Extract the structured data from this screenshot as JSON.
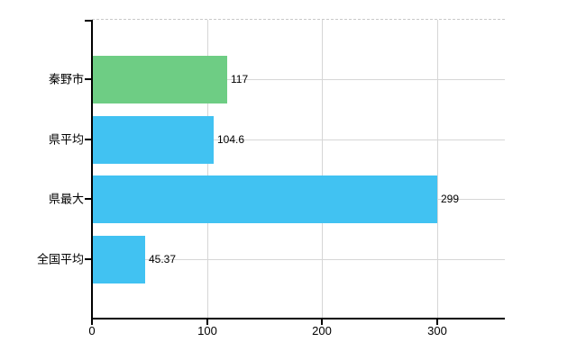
{
  "chart_data": {
    "type": "bar",
    "orientation": "horizontal",
    "title": "",
    "categories": [
      "秦野市",
      "県平均",
      "県最大",
      "全国平均"
    ],
    "values": [
      117,
      104.6,
      299,
      45.37
    ],
    "value_labels": [
      "117",
      "104.6",
      "299",
      "45.37"
    ],
    "series": [
      {
        "name": "",
        "values": [
          117,
          104.6,
          299,
          45.37
        ]
      }
    ],
    "bar_colors": [
      "#6ecd84",
      "#41c2f2",
      "#41c2f2",
      "#41c2f2"
    ],
    "x_tick_values": [
      0,
      100,
      200,
      300
    ],
    "x_tick_labels": [
      "0",
      "100",
      "200",
      "300"
    ],
    "xlim": [
      0,
      358.8
    ],
    "grid": true,
    "grid_color": "#d6d6d6",
    "top_border_style": "dashed",
    "legend": "none",
    "background_color": "#ffffff",
    "axis_color": "#000000"
  }
}
